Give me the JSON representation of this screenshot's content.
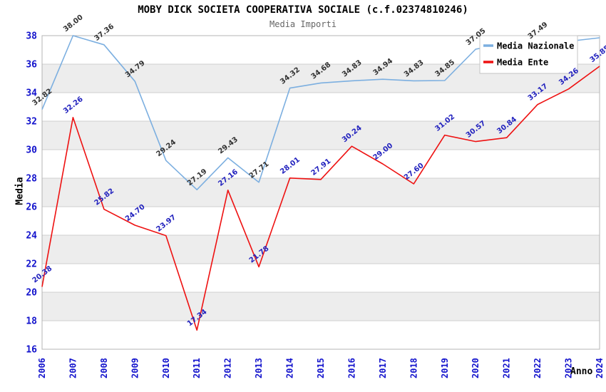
{
  "title": "MOBY DICK SOCIETA COOPERATIVA SOCIALE (c.f.02374810246)",
  "subtitle": "Media Importi",
  "colors": {
    "background": "#ffffff",
    "band_gray": "#ededed",
    "gridline": "#d0d0d0",
    "plot_border": "#b4b4b4",
    "tick_label_blue": "#1212cc",
    "legend_border": "#c4c4c4",
    "legend_background": "#ffffff",
    "subtitle_gray": "#666666"
  },
  "chart_data": {
    "type": "line",
    "title": "MOBY DICK SOCIETA COOPERATIVA SOCIALE (c.f.02374810246)",
    "subtitle": "Media Importi",
    "xlabel": "Anno",
    "ylabel": "Media",
    "x": [
      2006,
      2007,
      2008,
      2009,
      2010,
      2011,
      2012,
      2013,
      2014,
      2015,
      2016,
      2017,
      2018,
      2019,
      2020,
      2021,
      2022,
      2023,
      2024
    ],
    "ylim": [
      16,
      38
    ],
    "ytick_step": 2,
    "grid": true,
    "band_step": 2,
    "legend_position": "top-right",
    "series": [
      {
        "name": "Media Nazionale",
        "color": "#7cafe0",
        "label_color": "#333333",
        "values": [
          32.82,
          38.0,
          37.36,
          34.79,
          29.24,
          27.19,
          29.43,
          27.71,
          34.32,
          34.68,
          34.83,
          34.94,
          34.83,
          34.85,
          37.05,
          37.46,
          37.49,
          37.6,
          37.85
        ],
        "labels": [
          "32.82",
          "38.00",
          "37.36",
          "34.79",
          "29.24",
          "27.19",
          "29.43",
          "27.71",
          "34.32",
          "34.68",
          "34.83",
          "34.94",
          "34.83",
          "34.85",
          "37.05",
          "",
          "37.49",
          "",
          ""
        ]
      },
      {
        "name": "Media Ente",
        "color": "#ee1111",
        "label_color": "#2222be",
        "values": [
          20.38,
          32.26,
          25.82,
          24.7,
          23.97,
          17.34,
          27.16,
          21.78,
          28.01,
          27.91,
          30.24,
          29.0,
          27.6,
          31.02,
          30.57,
          30.84,
          33.17,
          34.26,
          35.85
        ],
        "labels": [
          "20.38",
          "32.26",
          "25.82",
          "24.70",
          "23.97",
          "17.34",
          "27.16",
          "21.78",
          "28.01",
          "27.91",
          "30.24",
          "29.00",
          "27.60",
          "31.02",
          "30.57",
          "30.84",
          "33.17",
          "34.26",
          "35.85"
        ]
      }
    ]
  }
}
